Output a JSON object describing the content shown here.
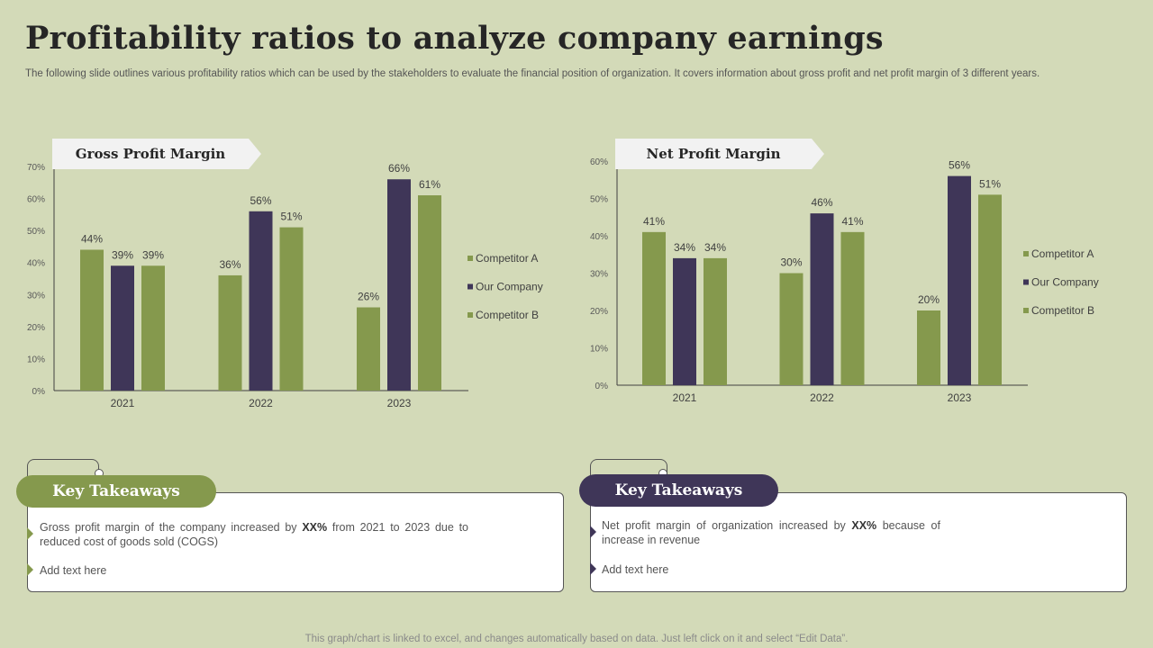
{
  "title": "Profitability ratios to analyze company earnings",
  "subtitle": "The following slide outlines various profitability ratios which can be used by the stakeholders to evaluate the financial position of organization. It covers information about gross profit and net profit margin of 3 different years.",
  "footer": "This graph/chart is linked to excel,  and changes automatically based on data. Just left click on it and select “Edit Data”.",
  "colors": {
    "competitor_a": "#85994d",
    "our_company": "#3f3658",
    "competitor_b": "#85994d",
    "background": "#d3dab8"
  },
  "chart_data": [
    {
      "type": "bar",
      "title": "Gross Profit Margin",
      "categories": [
        "2021",
        "2022",
        "2023"
      ],
      "series": [
        {
          "name": "Competitor A",
          "values": [
            44,
            36,
            26
          ]
        },
        {
          "name": "Our Company",
          "values": [
            39,
            56,
            66
          ]
        },
        {
          "name": "Competitor B",
          "values": [
            39,
            51,
            61
          ]
        }
      ],
      "ylim": [
        0,
        70
      ],
      "yticks": [
        "0%",
        "10%",
        "20%",
        "30%",
        "40%",
        "50%",
        "60%",
        "70%"
      ],
      "value_suffix": "%",
      "legend": "right"
    },
    {
      "type": "bar",
      "title": "Net Profit Margin",
      "categories": [
        "2021",
        "2022",
        "2023"
      ],
      "series": [
        {
          "name": "Competitor A",
          "values": [
            41,
            30,
            20
          ]
        },
        {
          "name": "Our Company",
          "values": [
            34,
            46,
            56
          ]
        },
        {
          "name": "Competitor B",
          "values": [
            34,
            41,
            51
          ]
        }
      ],
      "ylim": [
        0,
        60
      ],
      "yticks": [
        "0%",
        "10%",
        "20%",
        "30%",
        "40%",
        "50%",
        "60%"
      ],
      "value_suffix": "%",
      "legend": "right"
    }
  ],
  "takeaways_left": {
    "heading": "Key Takeaways",
    "bullet1_pre": "Gross profit margin of the company increased by ",
    "bullet1_bold": "XX%",
    "bullet1_post": " from 2021 to 2023 due to reduced cost of goods sold (COGS)",
    "bullet2": "Add text here"
  },
  "takeaways_right": {
    "heading": "Key Takeaways",
    "bullet1_pre": "Net profit margin of organization increased by ",
    "bullet1_bold": "XX%",
    "bullet1_post": " because of increase in revenue",
    "bullet2": "Add text here"
  }
}
